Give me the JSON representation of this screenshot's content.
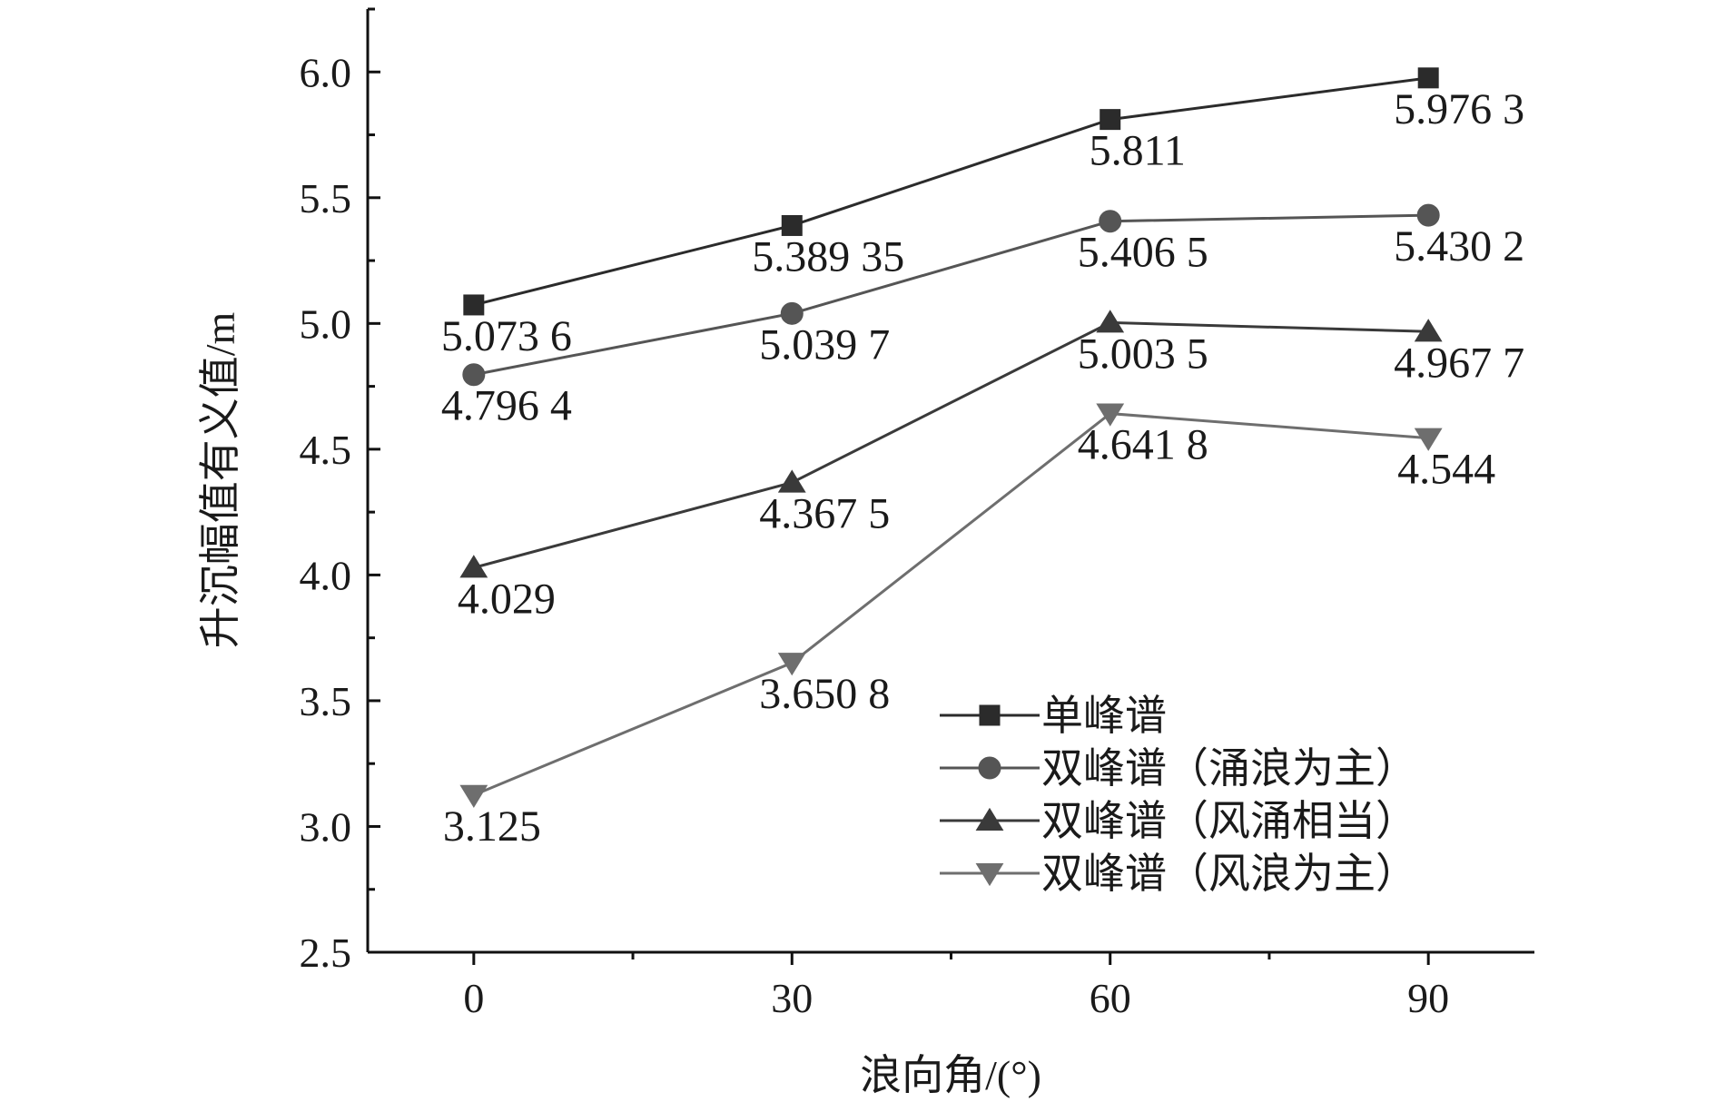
{
  "chart_data": {
    "type": "line",
    "xlabel": "浪向角/(°)",
    "ylabel": "升沉幅值有义值/m",
    "x": [
      0,
      30,
      60,
      90
    ],
    "xlim": [
      -10,
      100
    ],
    "ylim": [
      2.5,
      6.25
    ],
    "x_ticks": [
      "0",
      "30",
      "60",
      "90"
    ],
    "y_ticks": [
      "2.5",
      "3.0",
      "3.5",
      "4.0",
      "4.5",
      "5.0",
      "5.5",
      "6.0"
    ],
    "grid": false,
    "legend_position": "bottom-right",
    "series": [
      {
        "name": "单峰谱",
        "marker": "square",
        "color": "#2b2b2b",
        "values": [
          5.0736,
          5.38935,
          5.811,
          5.9763
        ],
        "labels": [
          "5.073 6",
          "5.389 35",
          "5.811",
          "5.976 3"
        ]
      },
      {
        "name": "双峰谱（涌浪为主）",
        "marker": "circle",
        "color": "#555555",
        "values": [
          4.7964,
          5.0397,
          5.4065,
          5.4302
        ],
        "labels": [
          "4.796 4",
          "5.039 7",
          "5.406 5",
          "5.430 2"
        ]
      },
      {
        "name": "双峰谱（风涌相当）",
        "marker": "triangle-up",
        "color": "#3a3a3a",
        "values": [
          4.029,
          4.3675,
          5.0035,
          4.9677
        ],
        "labels": [
          "4.029",
          "4.367 5",
          "5.003 5",
          "4.967 7"
        ]
      },
      {
        "name": "双峰谱（风浪为主）",
        "marker": "triangle-down",
        "color": "#6e6e6e",
        "values": [
          3.125,
          3.6508,
          4.6418,
          4.544
        ],
        "labels": [
          "3.125",
          "3.650 8",
          "4.641 8",
          "4.544"
        ]
      }
    ]
  }
}
